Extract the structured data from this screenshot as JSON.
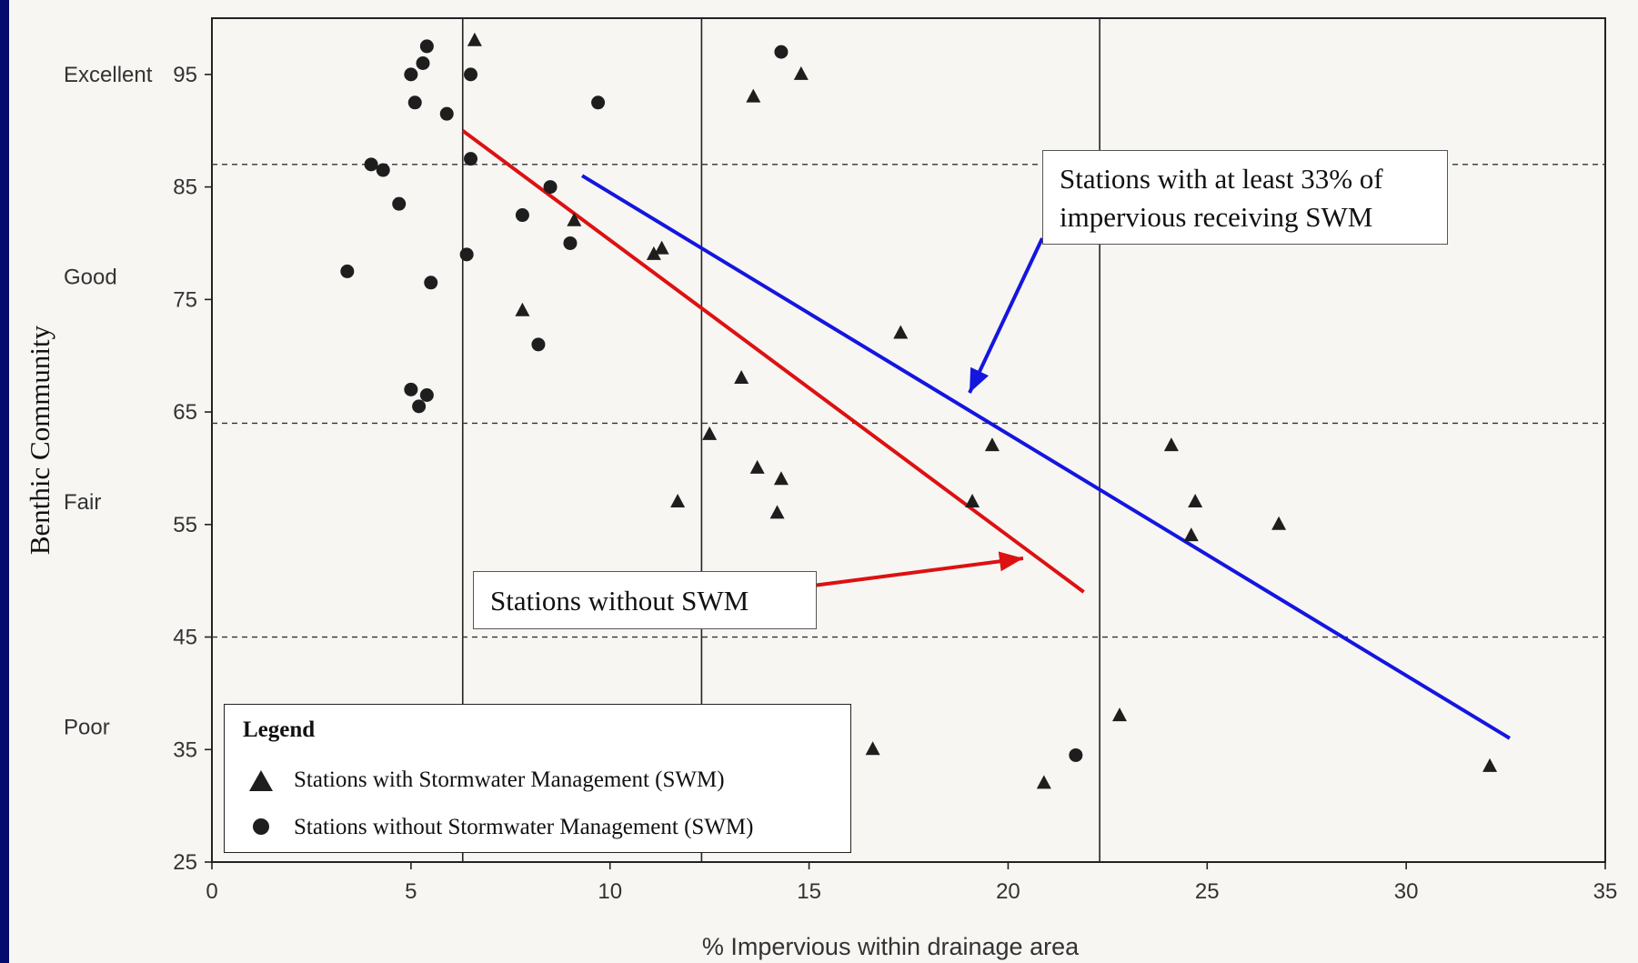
{
  "chart_data": {
    "type": "scatter",
    "xlabel": "% Impervious within drainage area",
    "ylabel": "Benthic Community",
    "xlim": [
      0,
      35
    ],
    "ylim": [
      25,
      100
    ],
    "xticks": [
      "0",
      "5",
      "10",
      "15",
      "20",
      "25",
      "30",
      "35"
    ],
    "yticks": [
      "25",
      "35",
      "45",
      "55",
      "65",
      "75",
      "85",
      "95"
    ],
    "categories": [
      "Excellent",
      "Good",
      "Fair",
      "Poor"
    ],
    "thresholds": [
      87,
      64,
      45
    ],
    "vertical_dividers": [
      6.3,
      12.3,
      22.3
    ],
    "series": [
      {
        "name": "Stations with Stormwater Management (SWM)",
        "marker": "triangle",
        "points": [
          {
            "x": 6.6,
            "y": 98
          },
          {
            "x": 13.6,
            "y": 93
          },
          {
            "x": 14.8,
            "y": 95
          },
          {
            "x": 9.1,
            "y": 82
          },
          {
            "x": 11.1,
            "y": 79
          },
          {
            "x": 11.3,
            "y": 79.5
          },
          {
            "x": 7.8,
            "y": 74
          },
          {
            "x": 17.3,
            "y": 72
          },
          {
            "x": 13.3,
            "y": 68
          },
          {
            "x": 12.5,
            "y": 63
          },
          {
            "x": 19.6,
            "y": 62
          },
          {
            "x": 24.1,
            "y": 62
          },
          {
            "x": 13.7,
            "y": 60
          },
          {
            "x": 14.3,
            "y": 59
          },
          {
            "x": 11.7,
            "y": 57
          },
          {
            "x": 19.1,
            "y": 57
          },
          {
            "x": 24.7,
            "y": 57
          },
          {
            "x": 14.2,
            "y": 56
          },
          {
            "x": 26.8,
            "y": 55
          },
          {
            "x": 24.6,
            "y": 54
          },
          {
            "x": 22.8,
            "y": 38
          },
          {
            "x": 16.6,
            "y": 35
          },
          {
            "x": 20.9,
            "y": 32
          },
          {
            "x": 32.1,
            "y": 33.5
          }
        ]
      },
      {
        "name": "Stations without Stormwater Management (SWM)",
        "marker": "circle",
        "points": [
          {
            "x": 5.4,
            "y": 97.5
          },
          {
            "x": 14.3,
            "y": 97
          },
          {
            "x": 5.3,
            "y": 96
          },
          {
            "x": 5.0,
            "y": 95
          },
          {
            "x": 6.5,
            "y": 95
          },
          {
            "x": 5.1,
            "y": 92.5
          },
          {
            "x": 9.7,
            "y": 92.5
          },
          {
            "x": 5.9,
            "y": 91.5
          },
          {
            "x": 6.5,
            "y": 87.5
          },
          {
            "x": 4.0,
            "y": 87
          },
          {
            "x": 4.3,
            "y": 86.5
          },
          {
            "x": 8.5,
            "y": 85
          },
          {
            "x": 4.7,
            "y": 83.5
          },
          {
            "x": 7.8,
            "y": 82.5
          },
          {
            "x": 9.0,
            "y": 80
          },
          {
            "x": 6.4,
            "y": 79
          },
          {
            "x": 3.4,
            "y": 77.5
          },
          {
            "x": 5.5,
            "y": 76.5
          },
          {
            "x": 8.2,
            "y": 71
          },
          {
            "x": 5.0,
            "y": 67
          },
          {
            "x": 5.4,
            "y": 66.5
          },
          {
            "x": 5.2,
            "y": 65.5
          },
          {
            "x": 21.7,
            "y": 34.5
          }
        ]
      }
    ],
    "trend_lines": [
      {
        "color": "#dd1111",
        "x": [
          6.3,
          21.9
        ],
        "y": [
          90,
          49
        ]
      },
      {
        "color": "#1515e0",
        "x": [
          9.3,
          32.6
        ],
        "y": [
          86,
          36
        ]
      }
    ]
  },
  "annotations": {
    "swm_text": "Stations with at least 33% of impervious receiving SWM",
    "swm_line1": "Stations with at least 33% of",
    "swm_line2": "impervious receiving SWM",
    "noswm_text": "Stations without SWM"
  },
  "legend": {
    "title": "Legend",
    "items": [
      "Stations with Stormwater Management (SWM)",
      "Stations without Stormwater Management (SWM)"
    ]
  },
  "colors": {
    "background": "#050a6e",
    "swm_line": "#1515e0",
    "noswm_line": "#dd1111",
    "marker": "#1e1e1e"
  }
}
